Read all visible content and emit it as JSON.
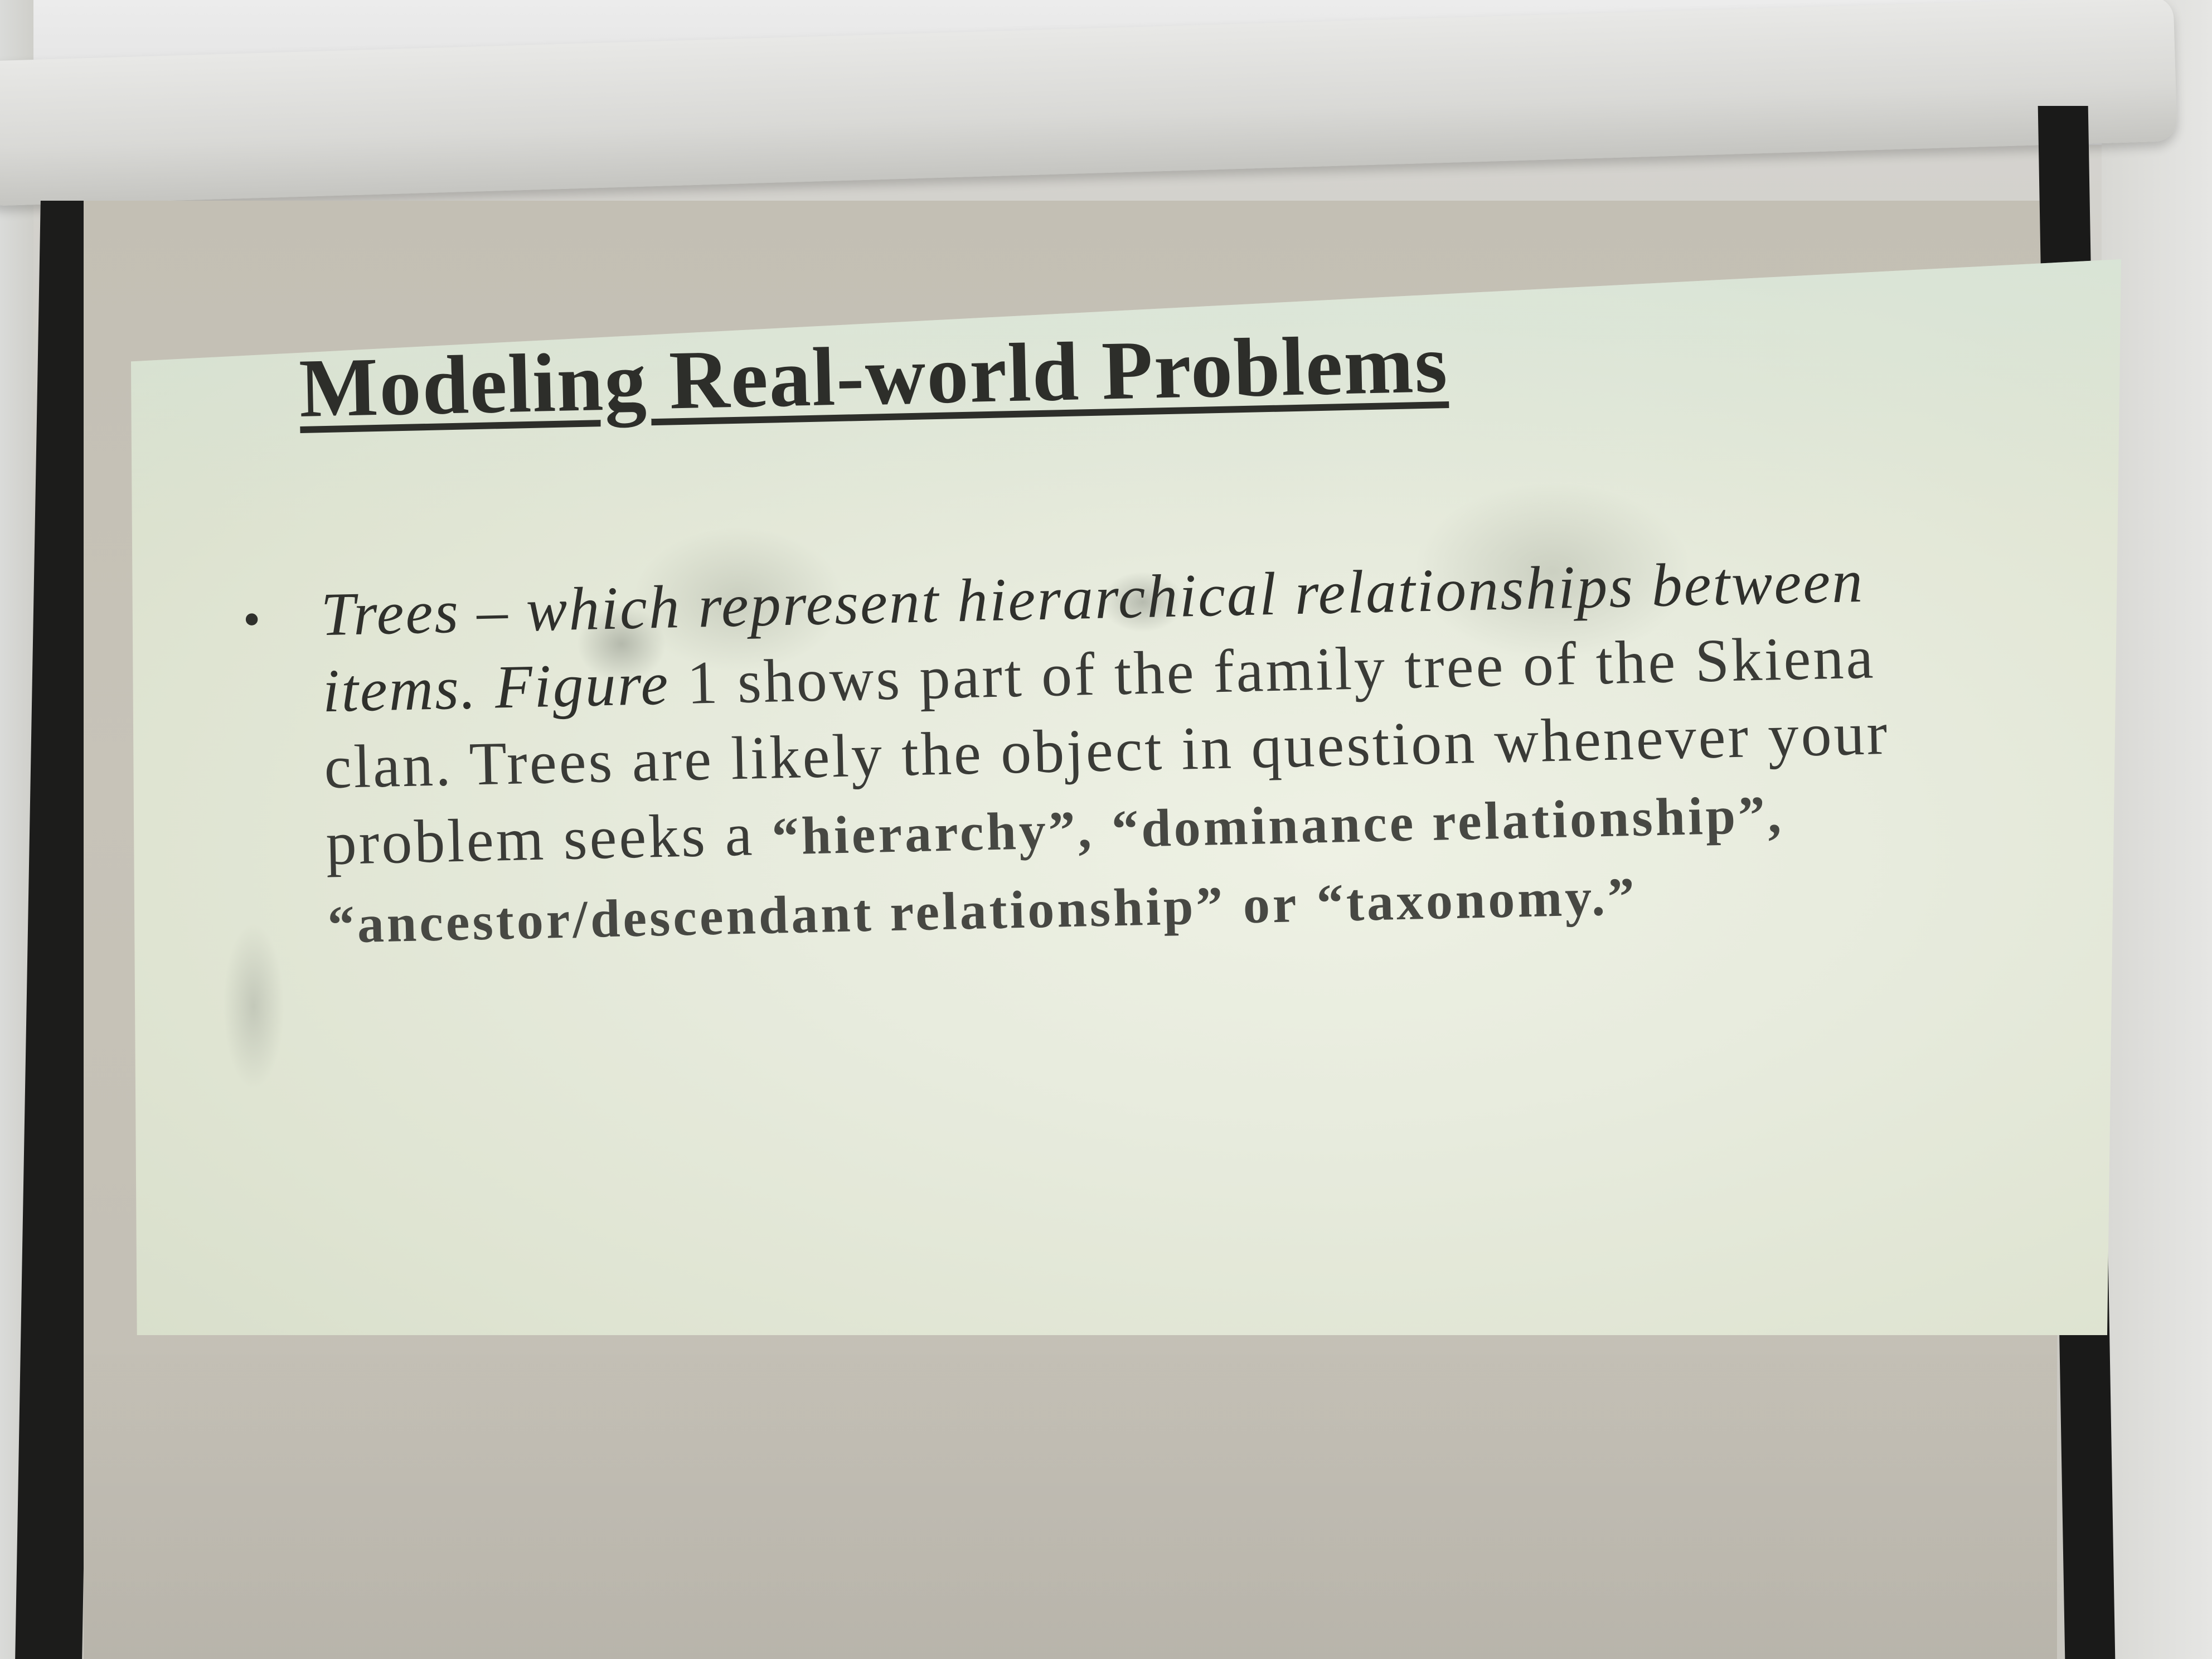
{
  "slide": {
    "title": "Modeling Real-world Problems",
    "bullet": {
      "term": "Trees",
      "dash": " – ",
      "line1": "which represent hierarchical relationships between items.",
      "figure": "Figure",
      "line2": " 1 shows part of the family tree of the Skiena clan. Trees are likely the object in question whenever your problem seeks a ",
      "q1": "“hierarchy”,",
      "q2": "“dominance relationship”,",
      "q3": "“ancestor/descendant relationship”",
      "or": "or",
      "q4": "“taxonomy.”"
    }
  },
  "colors": {
    "slide_background": "#e7ebdd",
    "title_text": "#2d2e2a",
    "body_text": "#3a3b37",
    "screen_frame": "#1c1c1b"
  }
}
